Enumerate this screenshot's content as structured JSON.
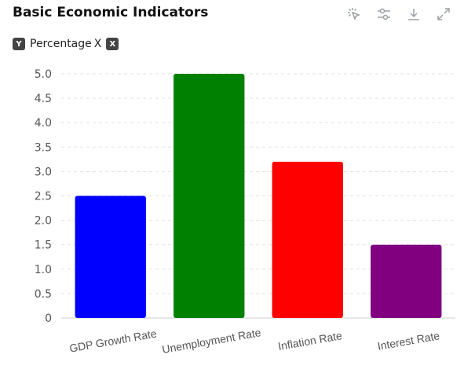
{
  "header": {
    "title": "Basic Economic Indicators"
  },
  "toolbar": {
    "icons": [
      "cursor-click-icon",
      "sliders-icon",
      "download-icon",
      "fullscreen-icon"
    ]
  },
  "axis_selector": {
    "y_badge": "Y",
    "label": "Percentage",
    "remove": "X",
    "close_badge": "X"
  },
  "chart_data": {
    "type": "bar",
    "categories": [
      "GDP Growth Rate",
      "Unemployment Rate",
      "Inflation Rate",
      "Interest Rate"
    ],
    "values": [
      2.5,
      5.0,
      3.2,
      1.5
    ],
    "colors": [
      "#0000ff",
      "#008000",
      "#ff0000",
      "#800080"
    ],
    "ylim": [
      0,
      5
    ],
    "yticks": [
      "0",
      "0.5",
      "1.0",
      "1.5",
      "2.0",
      "2.5",
      "3.0",
      "3.5",
      "4.0",
      "4.5",
      "5.0"
    ],
    "grid": true
  }
}
